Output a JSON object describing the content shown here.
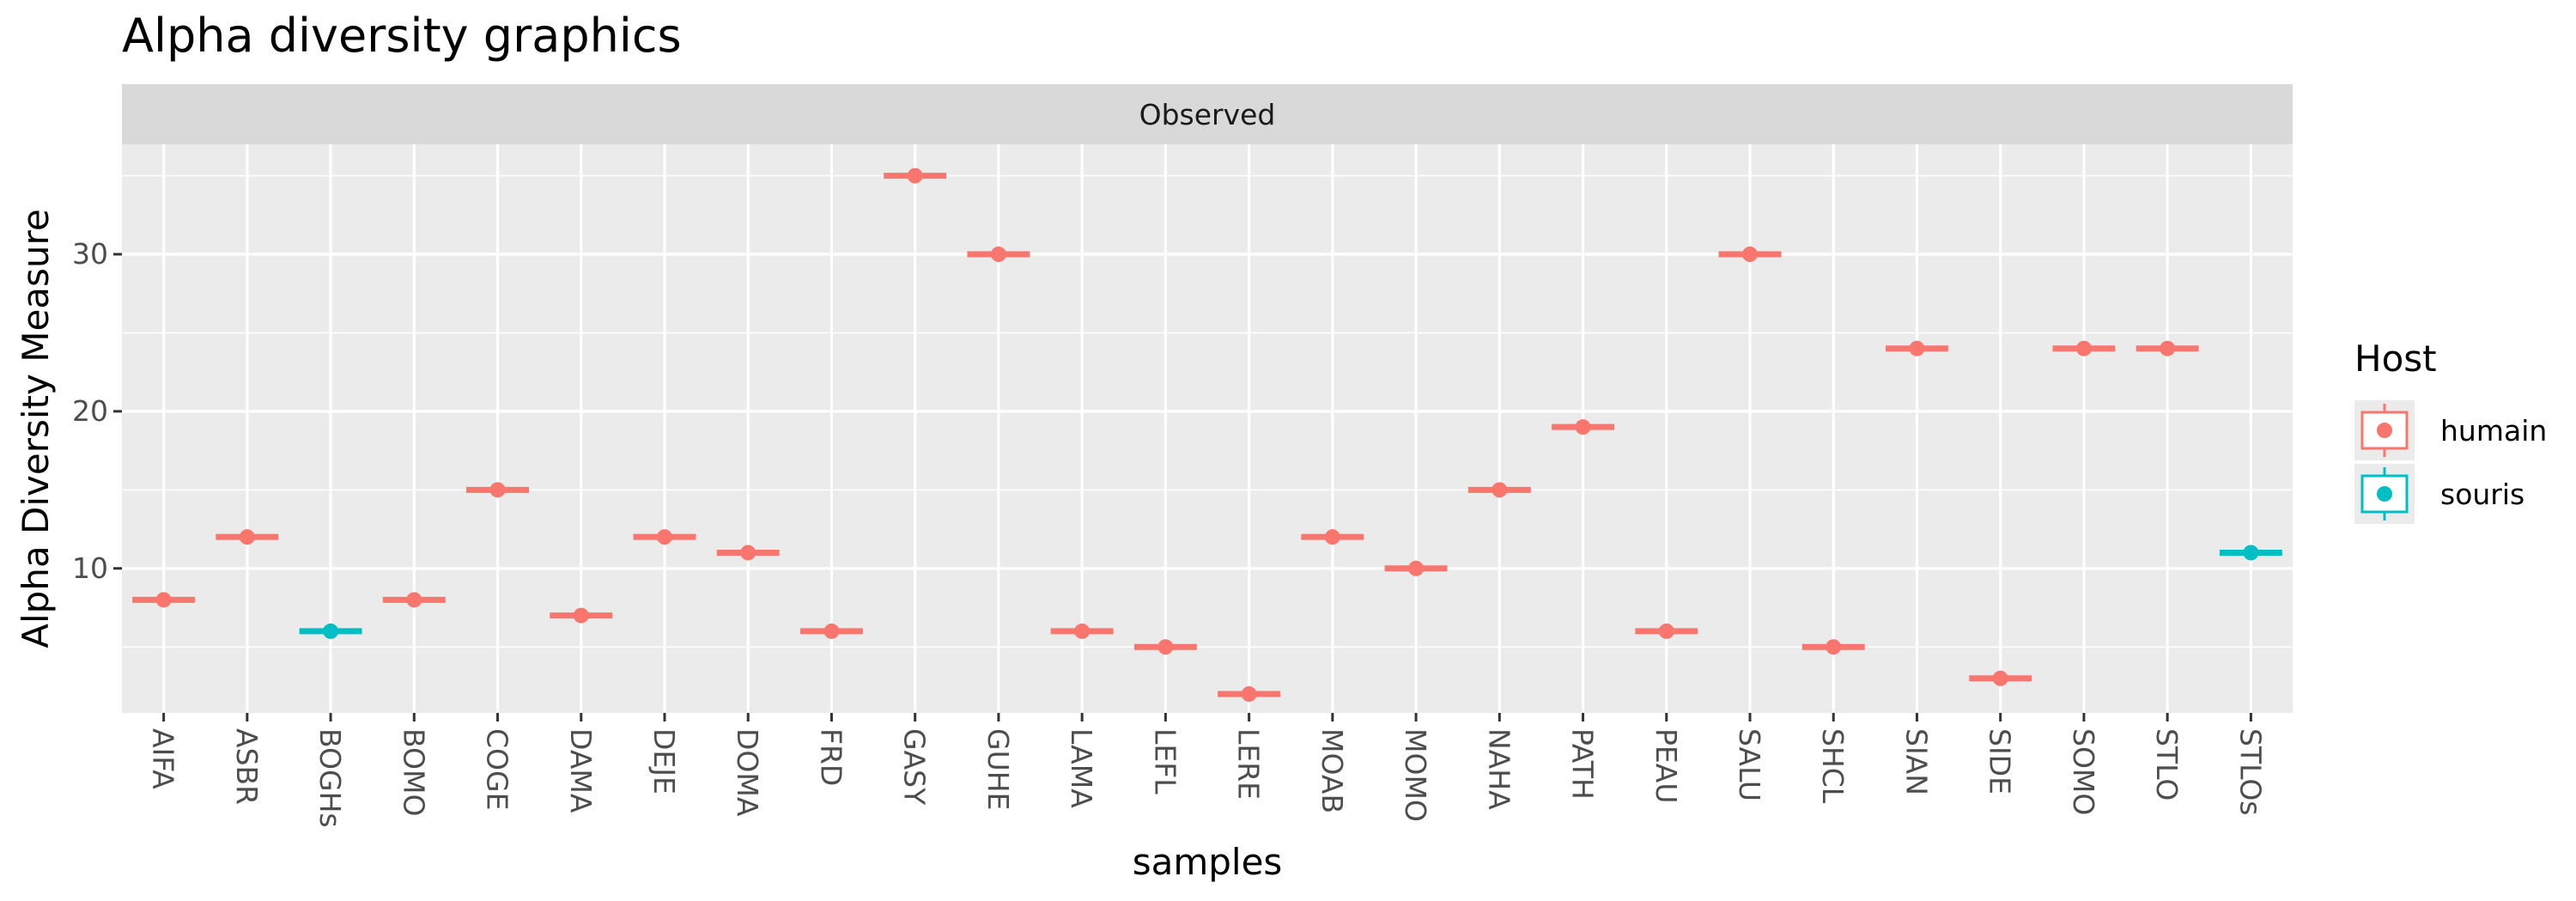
{
  "chart_data": {
    "type": "boxplot",
    "title": "Alpha diversity graphics",
    "facet": "Observed",
    "xlabel": "samples",
    "ylabel": "Alpha Diversity Measure",
    "ylim": [
      0.8,
      37
    ],
    "yticks": [
      10,
      20,
      30
    ],
    "grid": true,
    "legend": {
      "title": "Host",
      "placement": "right",
      "entries": [
        {
          "name": "humain",
          "color": "#F8766D"
        },
        {
          "name": "souris",
          "color": "#00BFC4"
        }
      ]
    },
    "categories": [
      "AIFA",
      "ASBR",
      "BOGHs",
      "BOMO",
      "COGE",
      "DAMA",
      "DEJE",
      "DOMA",
      "FRD",
      "GASY",
      "GUHE",
      "LAMA",
      "LEFL",
      "LERE",
      "MOAB",
      "MOMO",
      "NAHA",
      "PATH",
      "PEAU",
      "SALU",
      "SHCL",
      "SIAN",
      "SIDE",
      "SOMO",
      "STLO",
      "STLOs"
    ],
    "values": [
      8,
      12,
      6,
      8,
      15,
      7,
      12,
      11,
      6,
      35,
      30,
      6,
      5,
      2,
      12,
      10,
      15,
      19,
      6,
      30,
      5,
      24,
      3,
      24,
      24,
      11
    ],
    "host": [
      "humain",
      "humain",
      "souris",
      "humain",
      "humain",
      "humain",
      "humain",
      "humain",
      "humain",
      "humain",
      "humain",
      "humain",
      "humain",
      "humain",
      "humain",
      "humain",
      "humain",
      "humain",
      "humain",
      "humain",
      "humain",
      "humain",
      "humain",
      "humain",
      "humain",
      "souris"
    ]
  }
}
